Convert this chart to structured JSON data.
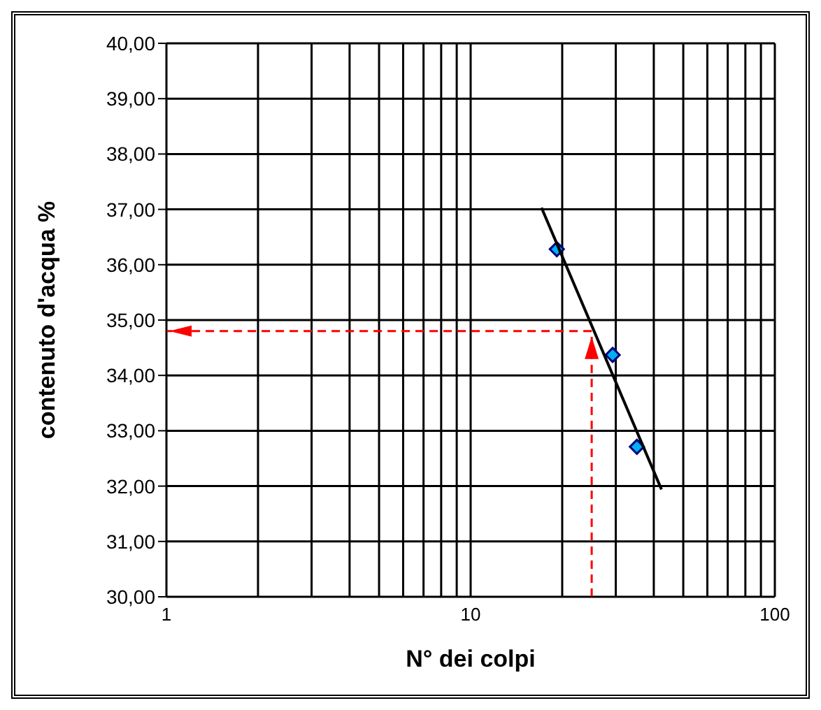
{
  "chart_data": {
    "type": "scatter",
    "xlabel": "N° dei colpi",
    "ylabel": "contenuto d'acqua %",
    "log": "x",
    "grid": true,
    "marker": "diamond",
    "xlim": [
      1,
      100
    ],
    "ylim": [
      30,
      40
    ],
    "xticks": [
      1,
      {
        "value": 2,
        "label": null
      },
      {
        "value": 3,
        "label": null
      },
      {
        "value": 4,
        "label": null
      },
      {
        "value": 5,
        "label": null
      },
      {
        "value": 6,
        "label": null
      },
      {
        "value": 7,
        "label": null
      },
      {
        "value": 8,
        "label": null
      },
      {
        "value": 9,
        "label": null
      },
      10,
      {
        "value": 20,
        "label": null
      },
      {
        "value": 30,
        "label": null
      },
      {
        "value": 40,
        "label": null
      },
      {
        "value": 50,
        "label": null
      },
      {
        "value": 60,
        "label": null
      },
      {
        "value": 70,
        "label": null
      },
      {
        "value": 80,
        "label": null
      },
      {
        "value": 90,
        "label": null
      },
      100
    ],
    "yticks": [
      {
        "value": 30,
        "label": "30,00"
      },
      {
        "value": 31,
        "label": "31,00"
      },
      {
        "value": 32,
        "label": "32,00"
      },
      {
        "value": 33,
        "label": "33,00"
      },
      {
        "value": 34,
        "label": "34,00"
      },
      {
        "value": 35,
        "label": "35,00"
      },
      {
        "value": 36,
        "label": "36,00"
      },
      {
        "value": 37,
        "label": "37,00"
      },
      {
        "value": 38,
        "label": "38,00"
      },
      {
        "value": 39,
        "label": "39,00"
      },
      {
        "value": 40,
        "label": "40,00"
      }
    ],
    "series": [
      {
        "color": "#00b0f0",
        "x": [
          19.2,
          29.3,
          35.2
        ],
        "values": [
          36.28,
          34.37,
          32.71
        ]
      },
      {
        "type": "line",
        "color": "#000000",
        "marker": "none",
        "x": [
          17.1,
          42.4
        ],
        "values": [
          37.03,
          31.94
        ]
      }
    ],
    "ref_lines": [
      {
        "axis": "x",
        "value": 25,
        "color": "#ff0000",
        "line_style": "dashed"
      },
      {
        "axis": "y",
        "value": 34.8,
        "color": "#ff0000",
        "line_style": "dashed"
      }
    ]
  }
}
